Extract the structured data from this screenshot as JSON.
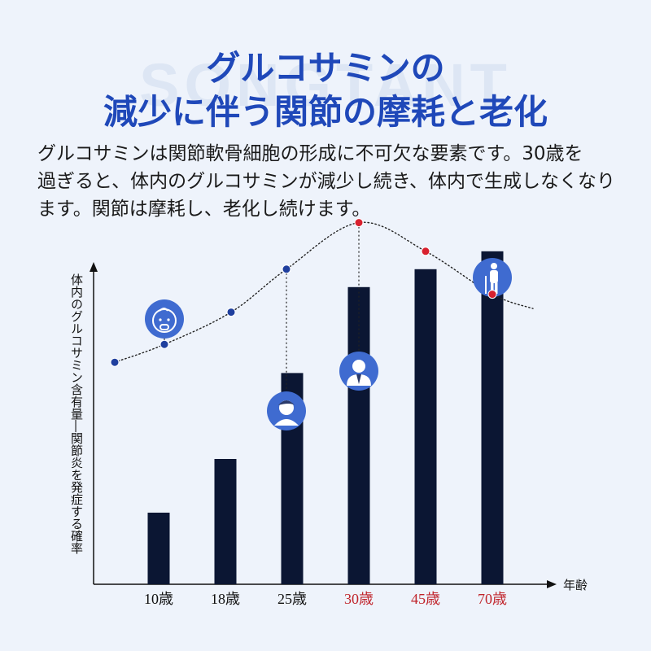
{
  "watermark": "SONGTANT",
  "title": {
    "line1": "グルコサミンの",
    "line2": "減少に伴う関節の摩耗と老化"
  },
  "description": {
    "line1": "グルコサミンは関節軟骨細胞の形成に不可欠な要素です。30歳を",
    "line2": "過ぎると、体内のグルコサミンが減少し続き、体内で生成しなくなり",
    "line3": "ます。関節は摩耗し、老化し続けます。"
  },
  "colors": {
    "title": "#1f48b9",
    "bar": "#0b1633",
    "point_blue": "#1f3f9e",
    "point_red": "#d8212f",
    "tick_red": "#c0242b",
    "icon_circle": "#3f6bd0"
  },
  "chart_data": {
    "type": "bar",
    "ylabel": "体内のグルコサミン含有量―関節炎を発症する確率",
    "xlabel": "年齢",
    "categories": [
      "10歳",
      "18歳",
      "25歳",
      "30歳",
      "45歳",
      "70歳"
    ],
    "highlight_categories": [
      "30歳",
      "45歳",
      "70歳"
    ],
    "values": [
      20,
      35,
      59,
      83,
      88,
      93
    ],
    "ylim": [
      0,
      100
    ],
    "grid": false,
    "legend": "none",
    "curve": {
      "type": "line",
      "style": "dotted",
      "points": [
        {
          "x": "",
          "value": 62,
          "color": "blue"
        },
        {
          "x": "10歳",
          "value": 67,
          "color": "blue"
        },
        {
          "x": "18歳",
          "value": 76,
          "color": "blue"
        },
        {
          "x": "25歳",
          "value": 88,
          "color": "blue"
        },
        {
          "x": "30歳",
          "value": 101,
          "color": "red"
        },
        {
          "x": "45歳",
          "value": 93,
          "color": "red"
        },
        {
          "x": "70歳",
          "value": 81,
          "color": "red"
        }
      ]
    },
    "icons": [
      {
        "category": "10歳",
        "icon": "baby-icon"
      },
      {
        "category": "25歳",
        "icon": "young-person-icon"
      },
      {
        "category": "30歳",
        "icon": "businessman-icon"
      },
      {
        "category": "70歳",
        "icon": "elderly-cane-icon"
      }
    ]
  }
}
